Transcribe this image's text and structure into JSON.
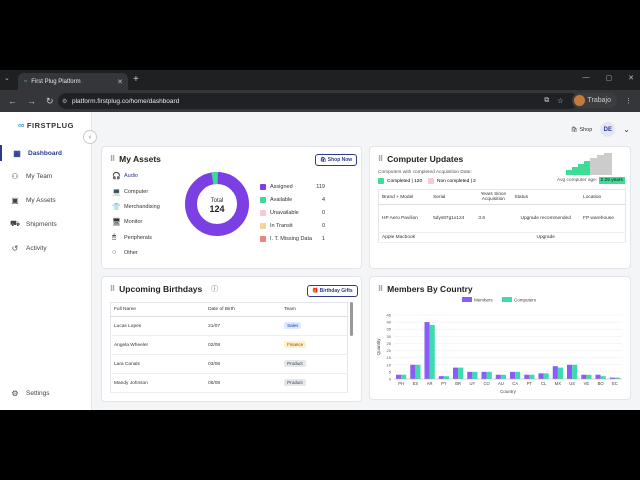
{
  "browser": {
    "tab_title": "First Plug Platform",
    "url": "platform.firstplug.co/home/dashboard",
    "profile_label": "Trabajo"
  },
  "sidebar": {
    "logo": "FIRSTPLUG",
    "items": [
      {
        "label": "Dashboard",
        "icon": "grid-icon"
      },
      {
        "label": "My Team",
        "icon": "users-icon"
      },
      {
        "label": "My Assets",
        "icon": "box-icon"
      },
      {
        "label": "Shipments",
        "icon": "truck-icon"
      },
      {
        "label": "Activity",
        "icon": "activity-icon"
      }
    ],
    "settings": "Settings"
  },
  "header": {
    "shop": "Shop",
    "avatar": "DE"
  },
  "assets": {
    "title": "My Assets",
    "shop_now": "Shop Now",
    "categories": [
      "Audio",
      "Computer",
      "Merchandising",
      "Monitor",
      "Peripherals",
      "Other"
    ],
    "total_label": "Total",
    "total": "124",
    "legend": [
      {
        "label": "Assigned",
        "value": "119",
        "color": "#7b3fe4"
      },
      {
        "label": "Available",
        "value": "4",
        "color": "#3ddc97"
      },
      {
        "label": "Unavailable",
        "value": "0",
        "color": "#f8c8d4"
      },
      {
        "label": "In Transit",
        "value": "0",
        "color": "#f5d49a"
      },
      {
        "label": "I. T. Missing Data",
        "value": "1",
        "color": "#f08080"
      }
    ]
  },
  "computer_updates": {
    "title": "Computer Updates",
    "subtitle": "Computers with completed Acquisition Date:",
    "completed": "Completed | 120",
    "not_completed": "Non completed | 2",
    "avg_label": "Avg computer age:",
    "avg_value": "2.25 years",
    "columns": [
      "Brand + Model",
      "Serial",
      "Years Since Acquisition",
      "Status",
      "Location"
    ],
    "rows": [
      [
        "HP Aero Pavilion",
        "5dys87g1x124",
        "3.6",
        "Upgrade recommended",
        "FP warehouse"
      ],
      [
        "Apple Macbook",
        "",
        "",
        "Upgrade",
        ""
      ]
    ]
  },
  "birthdays": {
    "title": "Upcoming Birthdays",
    "button": "Birthday Gifts",
    "columns": [
      "Full Name",
      "Date of Birth",
      "Team"
    ],
    "rows": [
      [
        "Lucas Lopes",
        "21/07",
        "Sales"
      ],
      [
        "Angela Wheeler",
        "02/08",
        "Finance"
      ],
      [
        "Lara Canals",
        "03/08",
        "Product"
      ],
      [
        "Mandy Johnson",
        "06/08",
        "Product"
      ]
    ]
  },
  "members_chart": {
    "title": "Members By Country"
  },
  "chart_data": {
    "type": "bar",
    "title": "",
    "xlabel": "Country",
    "ylabel": "Quantity",
    "ylim": [
      0,
      45
    ],
    "yticks": [
      0,
      5,
      10,
      15,
      20,
      25,
      30,
      35,
      40,
      45
    ],
    "categories": [
      "PH",
      "ES",
      "AR",
      "PY",
      "BR",
      "UY",
      "CO",
      "AU",
      "CA",
      "PT",
      "CL",
      "MX",
      "US",
      "VE",
      "BO",
      "EC"
    ],
    "series": [
      {
        "name": "Members",
        "color": "#8b5cf6",
        "values": [
          3,
          10,
          40,
          2,
          8,
          5,
          5,
          3,
          5,
          3,
          4,
          9,
          10,
          3,
          3,
          1
        ]
      },
      {
        "name": "Computers",
        "color": "#3ddcb0",
        "values": [
          3,
          10,
          38,
          2,
          8,
          5,
          5,
          3,
          5,
          3,
          4,
          8,
          10,
          3,
          2,
          1
        ]
      }
    ],
    "legend": "top-center"
  }
}
